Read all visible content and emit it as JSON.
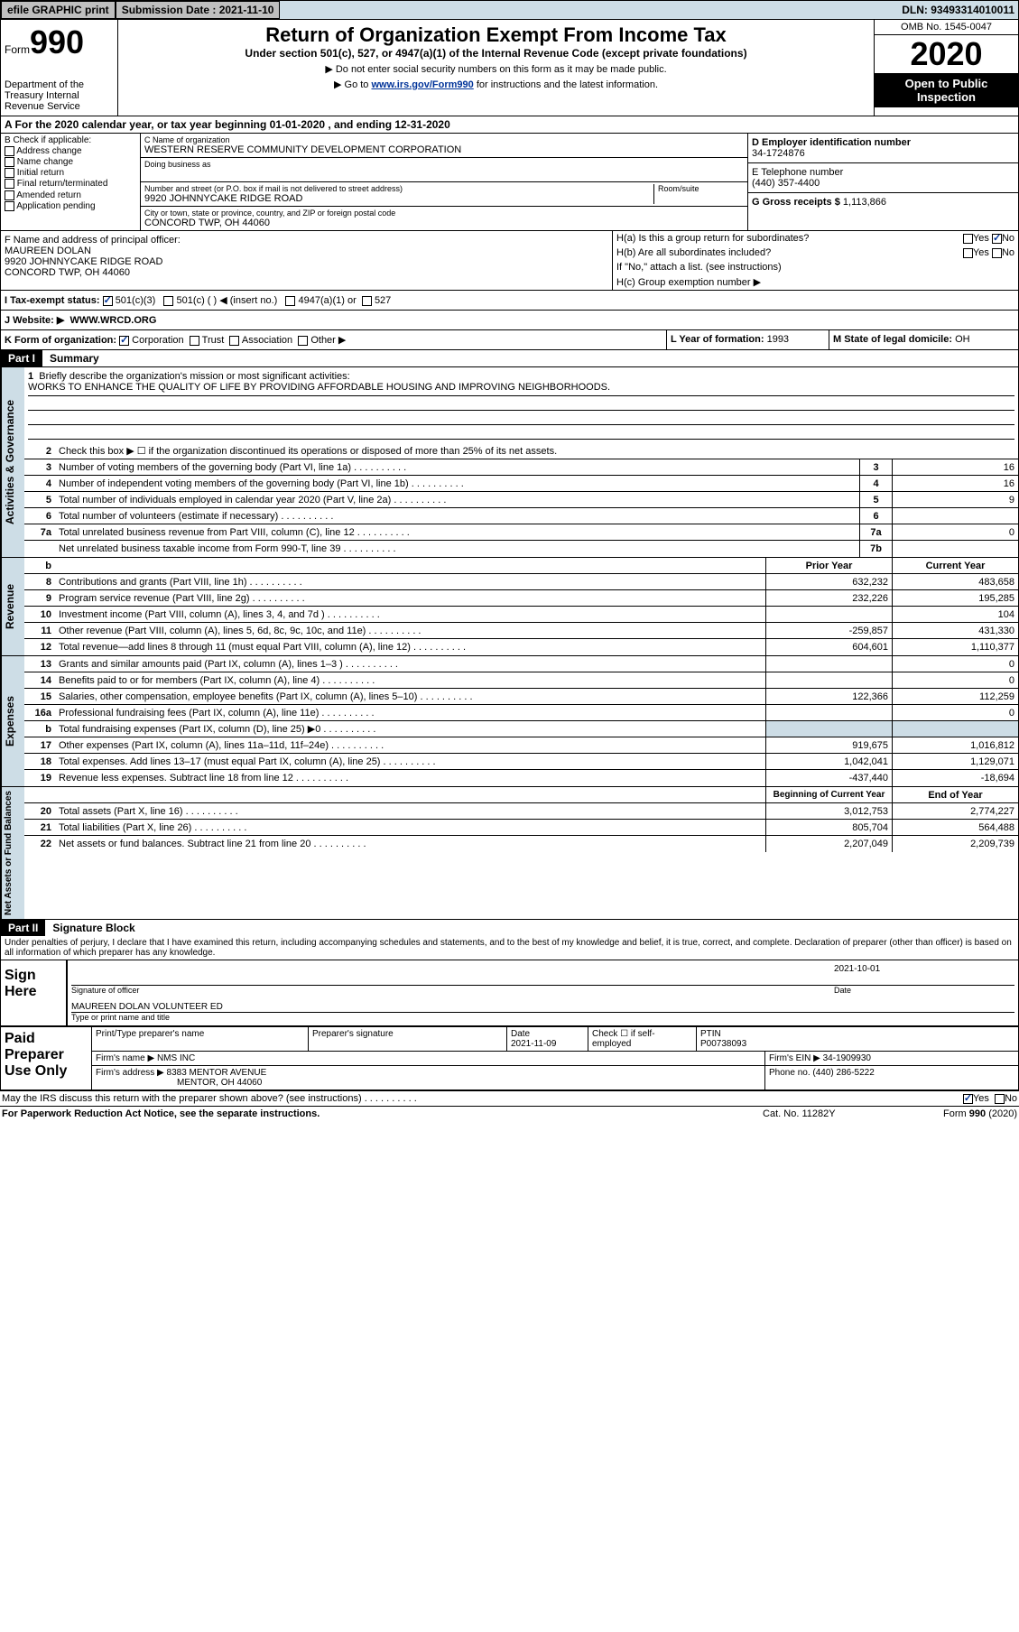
{
  "topbar": {
    "efile": "efile GRAPHIC print",
    "submission_label": "Submission Date : 2021-11-10",
    "dln": "DLN: 93493314010011"
  },
  "header": {
    "form_prefix": "Form",
    "form_number": "990",
    "dept": "Department of the Treasury\nInternal Revenue Service",
    "title": "Return of Organization Exempt From Income Tax",
    "subtitle": "Under section 501(c), 527, or 4947(a)(1) of the Internal Revenue Code (except private foundations)",
    "note1": "▶ Do not enter social security numbers on this form as it may be made public.",
    "note2_pre": "▶ Go to ",
    "note2_link": "www.irs.gov/Form990",
    "note2_post": " for instructions and the latest information.",
    "omb": "OMB No. 1545-0047",
    "year": "2020",
    "open_public": "Open to Public Inspection"
  },
  "section_a": "A For the 2020 calendar year, or tax year beginning 01-01-2020   , and ending 12-31-2020",
  "col_b": {
    "heading": "B Check if applicable:",
    "items": [
      "Address change",
      "Name change",
      "Initial return",
      "Final return/terminated",
      "Amended return",
      "Application pending"
    ]
  },
  "entity": {
    "c_label": "C Name of organization",
    "name": "WESTERN RESERVE COMMUNITY DEVELOPMENT CORPORATION",
    "dba_label": "Doing business as",
    "street_label": "Number and street (or P.O. box if mail is not delivered to street address)",
    "room_label": "Room/suite",
    "street": "9920 JOHNNYCAKE RIDGE ROAD",
    "city_label": "City or town, state or province, country, and ZIP or foreign postal code",
    "city": "CONCORD TWP, OH  44060"
  },
  "right": {
    "d_label": "D Employer identification number",
    "ein": "34-1724876",
    "e_label": "E Telephone number",
    "phone": "(440) 357-4400",
    "g_label": "G Gross receipts $",
    "gross": "1,113,866"
  },
  "f": {
    "label": "F  Name and address of principal officer:",
    "name": "MAUREEN DOLAN",
    "addr1": "9920 JOHNNYCAKE RIDGE ROAD",
    "addr2": "CONCORD TWP, OH  44060"
  },
  "h": {
    "ha": "H(a)  Is this a group return for subordinates?",
    "hb": "H(b)  Are all subordinates included?",
    "hb_note": "If \"No,\" attach a list. (see instructions)",
    "hc": "H(c)  Group exemption number ▶"
  },
  "status": {
    "i_label": "I  Tax-exempt status:",
    "s501c3": "501(c)(3)",
    "s501c": "501(c) (  ) ◀ (insert no.)",
    "s4947": "4947(a)(1) or",
    "s527": "527"
  },
  "website": {
    "label": "J  Website: ▶",
    "value": "WWW.WRCD.ORG"
  },
  "klm": {
    "k": "K Form of organization:",
    "corp": "Corporation",
    "trust": "Trust",
    "assoc": "Association",
    "other": "Other ▶",
    "l_label": "L Year of formation:",
    "l_val": "1993",
    "m_label": "M State of legal domicile:",
    "m_val": "OH"
  },
  "part1": {
    "label": "Part I",
    "title": "Summary",
    "line1": "Briefly describe the organization's mission or most significant activities:",
    "mission": "WORKS TO ENHANCE THE QUALITY OF LIFE BY PROVIDING AFFORDABLE HOUSING AND IMPROVING NEIGHBORHOODS.",
    "line2": "Check this box ▶ ☐  if the organization discontinued its operations or disposed of more than 25% of its net assets."
  },
  "governance_rows": [
    {
      "num": "3",
      "desc": "Number of voting members of the governing body (Part VI, line 1a)",
      "box": "3",
      "val": "16"
    },
    {
      "num": "4",
      "desc": "Number of independent voting members of the governing body (Part VI, line 1b)",
      "box": "4",
      "val": "16"
    },
    {
      "num": "5",
      "desc": "Total number of individuals employed in calendar year 2020 (Part V, line 2a)",
      "box": "5",
      "val": "9"
    },
    {
      "num": "6",
      "desc": "Total number of volunteers (estimate if necessary)",
      "box": "6",
      "val": ""
    },
    {
      "num": "7a",
      "desc": "Total unrelated business revenue from Part VIII, column (C), line 12",
      "box": "7a",
      "val": "0"
    },
    {
      "num": "",
      "desc": "Net unrelated business taxable income from Form 990-T, line 39",
      "box": "7b",
      "val": ""
    }
  ],
  "two_col_header": {
    "num": "b",
    "desc": "",
    "prior": "Prior Year",
    "current": "Current Year"
  },
  "revenue_rows": [
    {
      "num": "8",
      "desc": "Contributions and grants (Part VIII, line 1h)",
      "prior": "632,232",
      "current": "483,658"
    },
    {
      "num": "9",
      "desc": "Program service revenue (Part VIII, line 2g)",
      "prior": "232,226",
      "current": "195,285"
    },
    {
      "num": "10",
      "desc": "Investment income (Part VIII, column (A), lines 3, 4, and 7d )",
      "prior": "",
      "current": "104"
    },
    {
      "num": "11",
      "desc": "Other revenue (Part VIII, column (A), lines 5, 6d, 8c, 9c, 10c, and 11e)",
      "prior": "-259,857",
      "current": "431,330"
    },
    {
      "num": "12",
      "desc": "Total revenue—add lines 8 through 11 (must equal Part VIII, column (A), line 12)",
      "prior": "604,601",
      "current": "1,110,377"
    }
  ],
  "expense_rows": [
    {
      "num": "13",
      "desc": "Grants and similar amounts paid (Part IX, column (A), lines 1–3 )",
      "prior": "",
      "current": "0"
    },
    {
      "num": "14",
      "desc": "Benefits paid to or for members (Part IX, column (A), line 4)",
      "prior": "",
      "current": "0"
    },
    {
      "num": "15",
      "desc": "Salaries, other compensation, employee benefits (Part IX, column (A), lines 5–10)",
      "prior": "122,366",
      "current": "112,259"
    },
    {
      "num": "16a",
      "desc": "Professional fundraising fees (Part IX, column (A), line 11e)",
      "prior": "",
      "current": "0"
    },
    {
      "num": "b",
      "desc": "Total fundraising expenses (Part IX, column (D), line 25) ▶0",
      "prior": "",
      "current": ""
    },
    {
      "num": "17",
      "desc": "Other expenses (Part IX, column (A), lines 11a–11d, 11f–24e)",
      "prior": "919,675",
      "current": "1,016,812"
    },
    {
      "num": "18",
      "desc": "Total expenses. Add lines 13–17 (must equal Part IX, column (A), line 25)",
      "prior": "1,042,041",
      "current": "1,129,071"
    },
    {
      "num": "19",
      "desc": "Revenue less expenses. Subtract line 18 from line 12",
      "prior": "-437,440",
      "current": "-18,694"
    }
  ],
  "balance_header": {
    "prior": "Beginning of Current Year",
    "current": "End of Year"
  },
  "balance_rows": [
    {
      "num": "20",
      "desc": "Total assets (Part X, line 16)",
      "prior": "3,012,753",
      "current": "2,774,227"
    },
    {
      "num": "21",
      "desc": "Total liabilities (Part X, line 26)",
      "prior": "805,704",
      "current": "564,488"
    },
    {
      "num": "22",
      "desc": "Net assets or fund balances. Subtract line 21 from line 20",
      "prior": "2,207,049",
      "current": "2,209,739"
    }
  ],
  "part2": {
    "label": "Part II",
    "title": "Signature Block",
    "declaration": "Under penalties of perjury, I declare that I have examined this return, including accompanying schedules and statements, and to the best of my knowledge and belief, it is true, correct, and complete. Declaration of preparer (other than officer) is based on all information of which preparer has any knowledge."
  },
  "sign": {
    "label": "Sign Here",
    "sig_label": "Signature of officer",
    "date": "2021-10-01",
    "date_label": "Date",
    "name": "MAUREEN DOLAN  VOLUNTEER ED",
    "name_label": "Type or print name and title"
  },
  "preparer": {
    "label": "Paid Preparer Use Only",
    "h1": "Print/Type preparer's name",
    "h2": "Preparer's signature",
    "h3": "Date",
    "h3v": "2021-11-09",
    "h4": "Check ☐ if self-employed",
    "h5": "PTIN",
    "h5v": "P00738093",
    "firm_label": "Firm's name    ▶",
    "firm": "NMS INC",
    "ein_label": "Firm's EIN ▶",
    "ein": "34-1909930",
    "addr_label": "Firm's address ▶",
    "addr1": "8383 MENTOR AVENUE",
    "addr2": "MENTOR, OH  44060",
    "phone_label": "Phone no.",
    "phone": "(440) 286-5222"
  },
  "footer": {
    "discuss": "May the IRS discuss this return with the preparer shown above? (see instructions)",
    "paperwork": "For Paperwork Reduction Act Notice, see the separate instructions.",
    "cat": "Cat. No. 11282Y",
    "formno": "Form 990 (2020)"
  }
}
